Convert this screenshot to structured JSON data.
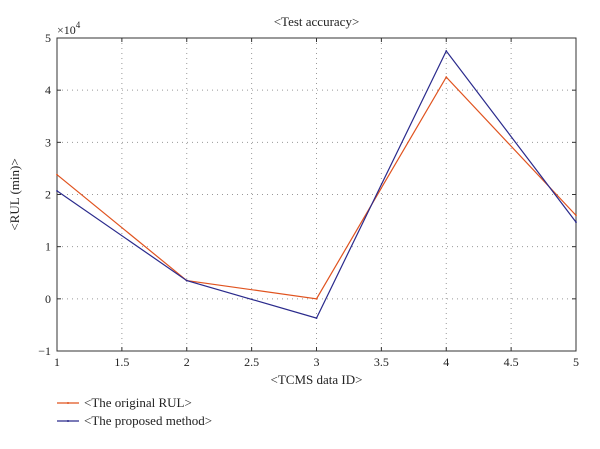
{
  "chart_data": {
    "type": "line",
    "title": "<Test accuracy>",
    "xlabel": "<TCMS data ID>",
    "ylabel": "<RUL (min)>",
    "y_multiplier_label": "×10",
    "y_multiplier_exp": "4",
    "xlim": [
      1,
      5
    ],
    "ylim": [
      -1,
      5
    ],
    "x_ticks": [
      1,
      1.5,
      2,
      2.5,
      3,
      3.5,
      4,
      4.5,
      5
    ],
    "x_tick_labels": [
      "1",
      "1.5",
      "2",
      "2.5",
      "3",
      "3.5",
      "4",
      "4.5",
      "5"
    ],
    "y_ticks": [
      -1,
      0,
      1,
      2,
      3,
      4,
      5
    ],
    "y_tick_labels": [
      "−1",
      "0",
      "1",
      "2",
      "3",
      "4",
      "5"
    ],
    "grid": true,
    "legend_position": "below-left",
    "x": [
      1,
      2,
      3,
      4,
      5
    ],
    "series": [
      {
        "name": "<The original RUL>",
        "color": "#e0531f",
        "values": [
          2.38,
          0.35,
          0.0,
          4.25,
          1.6
        ]
      },
      {
        "name": "<The proposed method>",
        "color": "#2a2a8c",
        "values": [
          2.07,
          0.35,
          -0.37,
          4.75,
          1.47
        ]
      }
    ]
  }
}
